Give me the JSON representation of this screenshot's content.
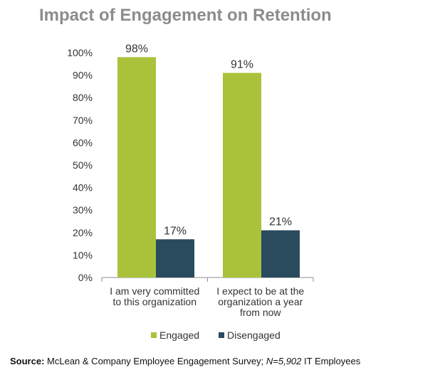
{
  "title": "Impact of Engagement on Retention",
  "chart_data": {
    "type": "bar",
    "categories": [
      [
        "I am very committed",
        "to this organization"
      ],
      [
        "I expect to be at the",
        "organization a year",
        "from now"
      ]
    ],
    "series": [
      {
        "name": "Engaged",
        "values": [
          98,
          91
        ],
        "labels": [
          "98%",
          "91%"
        ],
        "color": "#a9c23a"
      },
      {
        "name": "Disengaged",
        "values": [
          17,
          21
        ],
        "labels": [
          "17%",
          "21%"
        ],
        "color": "#2a4a5e"
      }
    ],
    "yticks": [
      "0%",
      "10%",
      "20%",
      "30%",
      "40%",
      "50%",
      "60%",
      "70%",
      "80%",
      "90%",
      "100%"
    ],
    "ylim": [
      0,
      100
    ],
    "legend_position": "bottom",
    "grid": false
  },
  "source": {
    "label": "Source:",
    "text_before": "McLean & Company Employee Engagement Survey;",
    "n_label": "N=5,902",
    "text_after": "IT Employees"
  },
  "colors": {
    "title": "#8c8c8c",
    "axis": "#8c8c8c",
    "text": "#333333"
  }
}
